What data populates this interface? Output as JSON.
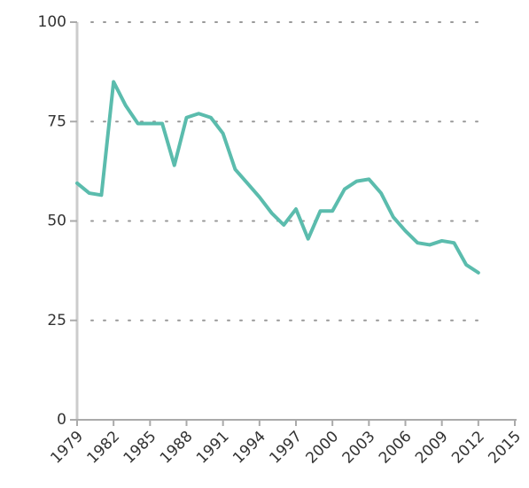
{
  "chart_data": {
    "type": "line",
    "color": "#5bbcad",
    "x": [
      1979,
      1980,
      1981,
      1982,
      1983,
      1984,
      1985,
      1986,
      1987,
      1988,
      1989,
      1990,
      1991,
      1992,
      1993,
      1994,
      1995,
      1996,
      1997,
      1998,
      1999,
      2000,
      2001,
      2002,
      2003,
      2004,
      2005,
      2006,
      2007,
      2008,
      2009,
      2010,
      2011,
      2012
    ],
    "values": [
      59.5,
      57,
      56.5,
      85,
      79,
      74.5,
      74.5,
      74.5,
      64,
      76,
      77,
      76,
      72,
      63,
      59.5,
      56,
      52,
      49,
      53,
      45.5,
      52.5,
      52.5,
      58,
      60,
      60.5,
      57,
      51,
      47.5,
      44.5,
      44,
      45,
      44.5,
      39,
      37
    ],
    "xlim": [
      1979,
      2015
    ],
    "xticks": [
      1979,
      1982,
      1985,
      1988,
      1991,
      1994,
      1997,
      2000,
      2003,
      2006,
      2009,
      2012,
      2015
    ],
    "ylim": [
      0,
      100
    ],
    "yticks": [
      0,
      25,
      50,
      75,
      100
    ],
    "grid": true
  }
}
